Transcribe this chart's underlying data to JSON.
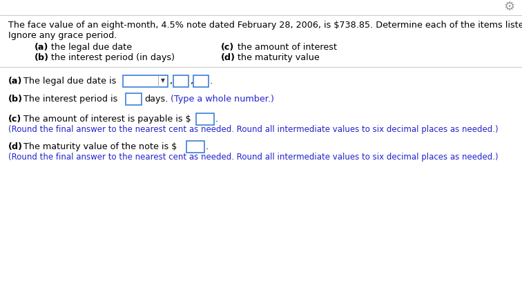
{
  "bg_color": "#ffffff",
  "gear_color": "#999999",
  "line_color": "#cccccc",
  "problem_text_line1": "The face value of an eight-month, 4.5% note dated February 28, 2006, is $738.85. Determine each of the items listed below.",
  "problem_text_line2": "Ignore any grace period.",
  "items_a_bold": "(a)",
  "items_a_rest": " the legal due date",
  "items_b_bold": "(b)",
  "items_b_rest": " the interest period (in days)",
  "items_c_bold": "(c)",
  "items_c_rest": " the amount of interest",
  "items_d_bold": "(d)",
  "items_d_rest": " the maturity value",
  "box_color": "#3a7fd5",
  "note_color": "#2222cc",
  "text_color": "#000000",
  "font_size_main": 9.2,
  "font_size_note": 8.5,
  "answer_b_type_note": "(Type a whole number.)",
  "answer_c_note": "(Round the final answer to the nearest cent as needed. Round all intermediate values to six decimal places as needed.)",
  "answer_d_note": "(Round the final answer to the nearest cent as needed. Round all intermediate values to six decimal places as needed.)"
}
